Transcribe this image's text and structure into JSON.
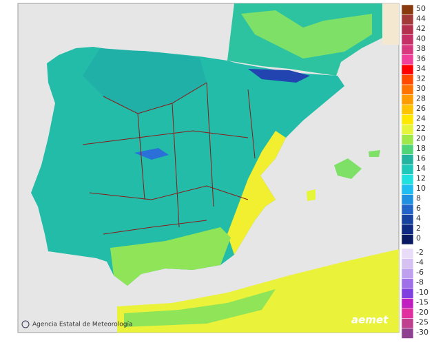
{
  "footer": {
    "credit": "Agencia Estatal de Meteorología",
    "logo": "aemet"
  },
  "legend": {
    "entries": [
      {
        "label": "50",
        "color": "#8b3a10"
      },
      {
        "label": "44",
        "color": "#a33a3a"
      },
      {
        "label": "42",
        "color": "#b3304e"
      },
      {
        "label": "40",
        "color": "#c53066"
      },
      {
        "label": "38",
        "color": "#d8387e"
      },
      {
        "label": "36",
        "color": "#f0409a"
      },
      {
        "label": "34",
        "color": "#ff0000"
      },
      {
        "label": "32",
        "color": "#ff4a00"
      },
      {
        "label": "30",
        "color": "#ff7400"
      },
      {
        "label": "28",
        "color": "#ff9c00"
      },
      {
        "label": "26",
        "color": "#ffc400"
      },
      {
        "label": "24",
        "color": "#ffe800"
      },
      {
        "label": "22",
        "color": "#e4f53a"
      },
      {
        "label": "20",
        "color": "#9ee84a"
      },
      {
        "label": "18",
        "color": "#4fd47a"
      },
      {
        "label": "16",
        "color": "#22b4a0"
      },
      {
        "label": "14",
        "color": "#1fc8b8"
      },
      {
        "label": "12",
        "color": "#20e0e0"
      },
      {
        "label": "10",
        "color": "#20bef0"
      },
      {
        "label": "8",
        "color": "#2090e0"
      },
      {
        "label": "6",
        "color": "#2264c8"
      },
      {
        "label": "4",
        "color": "#1842a0"
      },
      {
        "label": "2",
        "color": "#102a82"
      },
      {
        "label": "0",
        "color": "#0a1a60"
      },
      {
        "label": "-2",
        "color": "#e8dcf8"
      },
      {
        "label": "-4",
        "color": "#d6c2f2"
      },
      {
        "label": "-6",
        "color": "#bea0ee"
      },
      {
        "label": "-8",
        "color": "#a070e8"
      },
      {
        "label": "-10",
        "color": "#8040e0"
      },
      {
        "label": "-15",
        "color": "#c020c0"
      },
      {
        "label": "-20",
        "color": "#e030a0"
      },
      {
        "label": "-25",
        "color": "#c04090"
      },
      {
        "label": "-30",
        "color": "#904090"
      }
    ]
  }
}
